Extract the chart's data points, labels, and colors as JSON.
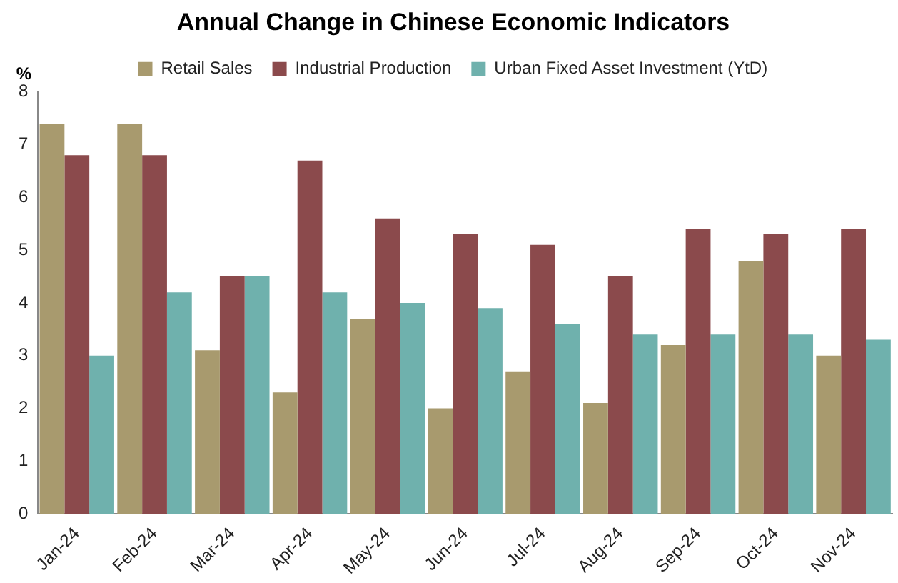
{
  "chart_data": {
    "type": "bar",
    "title": "Annual Change in Chinese Economic Indicators",
    "ylabel": "%",
    "categories": [
      "Jan-24",
      "Feb-24",
      "Mar-24",
      "Apr-24",
      "May-24",
      "Jun-24",
      "Jul-24",
      "Aug-24",
      "Sep-24",
      "Oct-24",
      "Nov-24"
    ],
    "series": [
      {
        "name": "Retail Sales",
        "color": "#a89a6e",
        "values": [
          7.4,
          7.4,
          3.1,
          2.3,
          3.7,
          2.0,
          2.7,
          2.1,
          3.2,
          4.8,
          3.0
        ]
      },
      {
        "name": "Industrial Production",
        "color": "#8b4a4c",
        "values": [
          6.8,
          6.8,
          4.5,
          6.7,
          5.6,
          5.3,
          5.1,
          4.5,
          5.4,
          5.3,
          5.4
        ]
      },
      {
        "name": "Urban Fixed Asset Investment (YtD)",
        "color": "#6fb1ad",
        "values": [
          3.0,
          4.2,
          4.5,
          4.2,
          4.0,
          3.9,
          3.6,
          3.4,
          3.4,
          3.4,
          3.3
        ]
      }
    ],
    "ylim": [
      0,
      8
    ],
    "yticks": [
      0,
      1,
      2,
      3,
      4,
      5,
      6,
      7,
      8
    ],
    "grid": false,
    "legend": "top"
  }
}
